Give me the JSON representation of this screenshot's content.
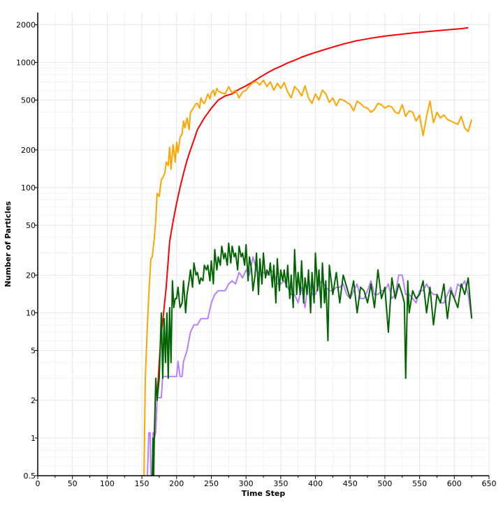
{
  "chart_data": {
    "type": "line",
    "title": "",
    "xlabel": "Time Step",
    "ylabel": "Number of Particles",
    "xlim": [
      0,
      650
    ],
    "ylim": [
      0.5,
      2500
    ],
    "yscale": "log",
    "grid": true,
    "legend": "none",
    "x_ticks": [
      0,
      50,
      100,
      150,
      200,
      250,
      300,
      350,
      400,
      450,
      500,
      550,
      600,
      650
    ],
    "y_ticks": [
      0.5,
      1,
      2,
      5,
      10,
      20,
      50,
      100,
      200,
      500,
      1000,
      2000
    ],
    "y_tick_labels": [
      "0.5",
      "1",
      "2",
      "5",
      "10",
      "20",
      "50",
      "100",
      "200",
      "500",
      "1000",
      "2000"
    ],
    "series": [
      {
        "color": "#ff0000",
        "x": [
          168,
          170,
          172,
          175,
          178,
          180,
          185,
          190,
          195,
          200,
          205,
          210,
          215,
          220,
          225,
          230,
          240,
          250,
          260,
          270,
          280,
          290,
          300,
          310,
          320,
          330,
          340,
          350,
          360,
          370,
          380,
          390,
          400,
          420,
          440,
          460,
          480,
          500,
          520,
          540,
          560,
          580,
          600,
          610,
          620
        ],
        "values": [
          1,
          1.2,
          2.1,
          4,
          7,
          8.5,
          16,
          37,
          54,
          75,
          100,
          130,
          165,
          200,
          240,
          290,
          360,
          430,
          500,
          540,
          560,
          610,
          650,
          700,
          760,
          820,
          880,
          930,
          990,
          1040,
          1100,
          1150,
          1200,
          1300,
          1400,
          1490,
          1560,
          1620,
          1670,
          1720,
          1760,
          1800,
          1840,
          1860,
          1890
        ]
      },
      {
        "color": "#ffa500",
        "x": [
          153,
          155,
          158,
          160,
          163,
          165,
          168,
          170,
          172,
          175,
          178,
          180,
          183,
          185,
          188,
          190,
          192,
          195,
          198,
          200,
          202,
          205,
          208,
          210,
          212,
          215,
          218,
          220,
          223,
          225,
          228,
          230,
          233,
          235,
          238,
          240,
          243,
          245,
          248,
          250,
          253,
          255,
          258,
          260,
          265,
          270,
          275,
          280,
          285,
          290,
          295,
          300,
          305,
          310,
          315,
          320,
          325,
          330,
          335,
          340,
          345,
          350,
          355,
          360,
          365,
          370,
          375,
          380,
          385,
          390,
          395,
          400,
          405,
          410,
          415,
          420,
          425,
          430,
          435,
          440,
          445,
          450,
          455,
          460,
          465,
          470,
          475,
          480,
          485,
          490,
          495,
          500,
          505,
          510,
          515,
          520,
          525,
          530,
          535,
          540,
          545,
          550,
          555,
          560,
          565,
          570,
          575,
          580,
          585,
          590,
          595,
          600,
          605,
          610,
          615,
          620,
          625
        ],
        "values": [
          0.5,
          3,
          8,
          14,
          27,
          28,
          40,
          55,
          90,
          85,
          115,
          120,
          130,
          160,
          150,
          210,
          140,
          220,
          160,
          230,
          190,
          250,
          270,
          340,
          300,
          360,
          290,
          400,
          420,
          440,
          470,
          470,
          430,
          520,
          480,
          470,
          520,
          560,
          510,
          570,
          600,
          540,
          620,
          590,
          570,
          560,
          640,
          570,
          600,
          520,
          580,
          600,
          650,
          690,
          700,
          660,
          720,
          640,
          700,
          600,
          680,
          620,
          690,
          580,
          520,
          640,
          600,
          540,
          650,
          520,
          470,
          560,
          500,
          600,
          560,
          480,
          520,
          450,
          510,
          500,
          480,
          460,
          410,
          490,
          470,
          440,
          430,
          400,
          420,
          470,
          460,
          430,
          450,
          440,
          400,
          390,
          460,
          370,
          410,
          400,
          340,
          380,
          260,
          370,
          490,
          330,
          400,
          360,
          380,
          350,
          340,
          330,
          320,
          370,
          300,
          280,
          350
        ]
      },
      {
        "color": "#b87fff",
        "x": [
          158,
          160,
          162,
          163,
          165,
          166,
          168,
          170,
          172,
          175,
          178,
          180,
          185,
          190,
          195,
          200,
          202,
          205,
          208,
          210,
          215,
          220,
          225,
          230,
          235,
          240,
          245,
          250,
          255,
          260,
          265,
          270,
          275,
          280,
          285,
          290,
          295,
          300,
          305,
          310,
          315,
          320,
          325,
          330,
          335,
          340,
          345,
          350,
          355,
          360,
          365,
          370,
          375,
          380,
          385,
          390,
          395,
          400,
          405,
          410,
          415,
          420,
          425,
          430,
          435,
          440,
          445,
          450,
          455,
          460,
          465,
          470,
          475,
          480,
          485,
          490,
          495,
          500,
          505,
          510,
          515,
          520,
          525,
          530,
          535,
          540,
          545,
          550,
          555,
          560,
          565,
          570,
          575,
          580,
          585,
          590,
          595,
          600,
          605,
          610,
          615,
          620,
          625
        ],
        "values": [
          0.5,
          1.1,
          1.1,
          0.5,
          0.5,
          1.1,
          1.1,
          1.1,
          2.1,
          2.1,
          2.1,
          3.1,
          3.1,
          3.1,
          3.1,
          3.1,
          4.1,
          3.1,
          3.1,
          4.1,
          5,
          7,
          8,
          8,
          9,
          9,
          9,
          12,
          14,
          15,
          15,
          15,
          17,
          18,
          17,
          21,
          19,
          22,
          20,
          28,
          22,
          20,
          21,
          20,
          22,
          21,
          17,
          17,
          18,
          16,
          14,
          14,
          12,
          16,
          11,
          19,
          14,
          14,
          17,
          18,
          16,
          15,
          15,
          16,
          16,
          17,
          14,
          13,
          15,
          17,
          13,
          13,
          15,
          18,
          14,
          14,
          15,
          15,
          17,
          13,
          14,
          20,
          20,
          14,
          14,
          13,
          12,
          15,
          15,
          17,
          15,
          14,
          14,
          12,
          12,
          14,
          16,
          13,
          17,
          16,
          18,
          14,
          9
        ]
      },
      {
        "color": "#006400",
        "x": [
          165,
          166,
          167,
          168,
          170,
          172,
          175,
          178,
          180,
          182,
          184,
          186,
          188,
          190,
          192,
          194,
          196,
          198,
          200,
          202,
          205,
          208,
          210,
          213,
          215,
          218,
          220,
          223,
          225,
          228,
          230,
          233,
          235,
          238,
          240,
          243,
          245,
          248,
          250,
          253,
          255,
          258,
          260,
          263,
          265,
          268,
          270,
          273,
          275,
          278,
          280,
          283,
          285,
          288,
          290,
          293,
          295,
          298,
          300,
          303,
          305,
          308,
          310,
          313,
          315,
          318,
          320,
          323,
          325,
          328,
          330,
          333,
          335,
          338,
          340,
          343,
          345,
          348,
          350,
          353,
          355,
          358,
          360,
          363,
          365,
          368,
          370,
          373,
          375,
          378,
          380,
          383,
          385,
          388,
          390,
          393,
          395,
          398,
          400,
          403,
          405,
          408,
          410,
          413,
          415,
          418,
          420,
          425,
          430,
          435,
          440,
          445,
          450,
          455,
          460,
          465,
          470,
          475,
          480,
          485,
          490,
          495,
          500,
          505,
          510,
          515,
          520,
          525,
          528,
          530,
          533,
          535,
          540,
          545,
          550,
          555,
          560,
          565,
          570,
          575,
          580,
          585,
          590,
          595,
          600,
          605,
          610,
          615,
          620,
          625
        ],
        "values": [
          0.5,
          1,
          0.5,
          1.1,
          3,
          2,
          3,
          10,
          3,
          9,
          4,
          10,
          3,
          11,
          4,
          18,
          11,
          13,
          13,
          16,
          11,
          12,
          18,
          10,
          14,
          18,
          22,
          16,
          25,
          20,
          21,
          17,
          19,
          18,
          24,
          22,
          24,
          18,
          26,
          17,
          32,
          22,
          28,
          24,
          34,
          27,
          30,
          24,
          36,
          25,
          34,
          28,
          30,
          22,
          34,
          28,
          30,
          24,
          35,
          18,
          28,
          22,
          15,
          20,
          30,
          14,
          27,
          17,
          30,
          19,
          22,
          20,
          25,
          16,
          24,
          12,
          27,
          15,
          22,
          18,
          22,
          16,
          24,
          13,
          20,
          11,
          32,
          14,
          21,
          14,
          26,
          12,
          19,
          14,
          22,
          10,
          21,
          12,
          30,
          15,
          22,
          11,
          25,
          12,
          18,
          6,
          24,
          14,
          21,
          12,
          20,
          16,
          13,
          18,
          10,
          16,
          15,
          12,
          17,
          11,
          22,
          13,
          16,
          7,
          19,
          13,
          17,
          14,
          12,
          3,
          18,
          10,
          15,
          13,
          14,
          18,
          10,
          16,
          8,
          14,
          12,
          17,
          9,
          15,
          13,
          11,
          17,
          14,
          19,
          9
        ]
      }
    ]
  }
}
